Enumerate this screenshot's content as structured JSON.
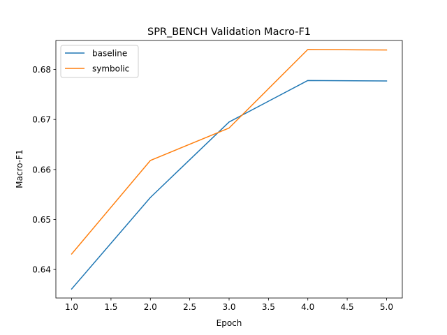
{
  "chart_data": {
    "type": "line",
    "title": "SPR_BENCH Validation Macro-F1",
    "xlabel": "Epoch",
    "ylabel": "Macro-F1",
    "x": [
      1,
      2,
      3,
      4,
      5
    ],
    "series": [
      {
        "name": "baseline",
        "values": [
          0.6361,
          0.6544,
          0.6695,
          0.6778,
          0.6777
        ],
        "color": "#1f77b4"
      },
      {
        "name": "symbolic",
        "values": [
          0.6431,
          0.6618,
          0.6683,
          0.684,
          0.6839
        ],
        "color": "#ff7f0e"
      }
    ],
    "xlim": [
      0.8,
      5.2
    ],
    "ylim": [
      0.6343,
      0.6858
    ],
    "xticks": [
      1.0,
      1.5,
      2.0,
      2.5,
      3.0,
      3.5,
      4.0,
      4.5,
      5.0
    ],
    "xtick_labels": [
      "1.0",
      "1.5",
      "2.0",
      "2.5",
      "3.0",
      "3.5",
      "4.0",
      "4.5",
      "5.0"
    ],
    "yticks": [
      0.64,
      0.65,
      0.66,
      0.67,
      0.68
    ],
    "ytick_labels": [
      "0.64",
      "0.65",
      "0.66",
      "0.67",
      "0.68"
    ],
    "grid": false,
    "legend_position": "upper-left"
  }
}
